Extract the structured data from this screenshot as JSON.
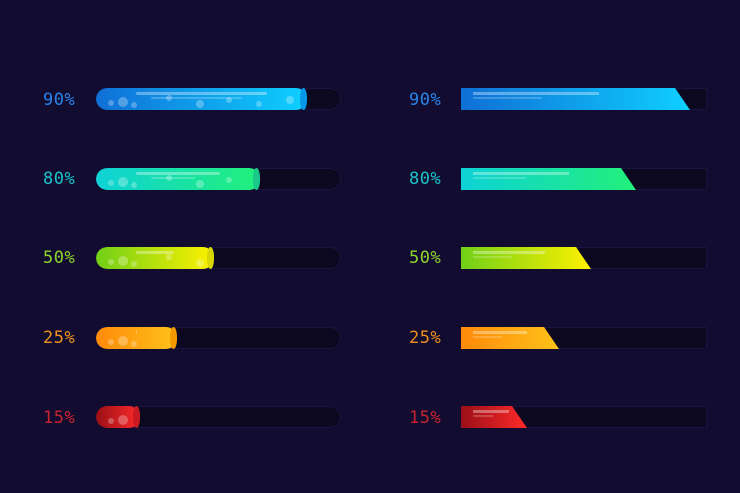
{
  "bars": [
    {
      "label": "90%",
      "value": 0.86,
      "color": "#2a83e8",
      "from": "#0f6fd6",
      "to": "#0fd0ff",
      "cap": "#0898e8"
    },
    {
      "label": "80%",
      "value": 0.67,
      "color": "#19c4c8",
      "from": "#0ed2d6",
      "to": "#22f07a",
      "cap": "#1ac98a"
    },
    {
      "label": "50%",
      "value": 0.48,
      "color": "#8fd62b",
      "from": "#70d018",
      "to": "#fff100",
      "cap": "#d8d800"
    },
    {
      "label": "25%",
      "value": 0.33,
      "color": "#f0901c",
      "from": "#ff8a0a",
      "to": "#ffc21a",
      "cap": "#f39a00"
    },
    {
      "label": "15%",
      "value": 0.18,
      "color": "#c8242e",
      "from": "#9a0f16",
      "to": "#ff2a2a",
      "cap": "#c71a22"
    }
  ],
  "slanted": [
    {
      "label": "90%",
      "value": 0.93,
      "color": "#2a83e8",
      "from": "#0f6fd6",
      "to": "#0fd0ff"
    },
    {
      "label": "80%",
      "value": 0.71,
      "color": "#19c4c8",
      "from": "#0ed2d6",
      "to": "#22f07a"
    },
    {
      "label": "50%",
      "value": 0.53,
      "color": "#8fd62b",
      "from": "#70d018",
      "to": "#fff100"
    },
    {
      "label": "25%",
      "value": 0.4,
      "color": "#f0901c",
      "from": "#ff8a0a",
      "to": "#ffc21a"
    },
    {
      "label": "15%",
      "value": 0.27,
      "color": "#c8242e",
      "from": "#9a0f16",
      "to": "#ff2a2a"
    }
  ]
}
